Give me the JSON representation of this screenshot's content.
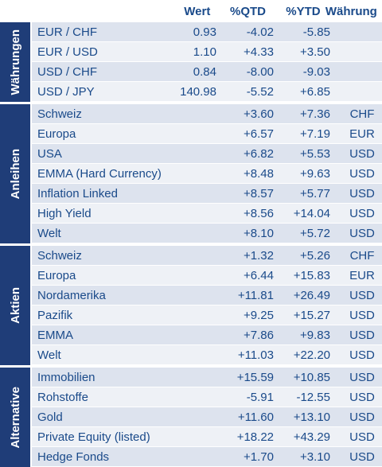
{
  "headers": {
    "wert": "Wert",
    "qtd": "%QTD",
    "ytd": "%YTD",
    "waehrung": "Währung"
  },
  "groups": [
    {
      "label": "Währungen",
      "rows": [
        {
          "name": "EUR / CHF",
          "wert": "0.93",
          "qtd": "-4.02",
          "ytd": "-5.85",
          "waehrung": ""
        },
        {
          "name": "EUR / USD",
          "wert": "1.10",
          "qtd": "+4.33",
          "ytd": "+3.50",
          "waehrung": ""
        },
        {
          "name": "USD / CHF",
          "wert": "0.84",
          "qtd": "-8.00",
          "ytd": "-9.03",
          "waehrung": ""
        },
        {
          "name": "USD / JPY",
          "wert": "140.98",
          "qtd": "-5.52",
          "ytd": "+6.85",
          "waehrung": ""
        }
      ]
    },
    {
      "label": "Anleihen",
      "rows": [
        {
          "name": "Schweiz",
          "wert": "",
          "qtd": "+3.60",
          "ytd": "+7.36",
          "waehrung": "CHF"
        },
        {
          "name": "Europa",
          "wert": "",
          "qtd": "+6.57",
          "ytd": "+7.19",
          "waehrung": "EUR"
        },
        {
          "name": "USA",
          "wert": "",
          "qtd": "+6.82",
          "ytd": "+5.53",
          "waehrung": "USD"
        },
        {
          "name": "EMMA (Hard Currency)",
          "wert": "",
          "qtd": "+8.48",
          "ytd": "+9.63",
          "waehrung": "USD"
        },
        {
          "name": "Inflation Linked",
          "wert": "",
          "qtd": "+8.57",
          "ytd": "+5.77",
          "waehrung": "USD"
        },
        {
          "name": "High Yield",
          "wert": "",
          "qtd": "+8.56",
          "ytd": "+14.04",
          "waehrung": "USD"
        },
        {
          "name": "Welt",
          "wert": "",
          "qtd": "+8.10",
          "ytd": "+5.72",
          "waehrung": "USD"
        }
      ]
    },
    {
      "label": "Aktien",
      "rows": [
        {
          "name": "Schweiz",
          "wert": "",
          "qtd": "+1.32",
          "ytd": "+5.26",
          "waehrung": "CHF"
        },
        {
          "name": "Europa",
          "wert": "",
          "qtd": "+6.44",
          "ytd": "+15.83",
          "waehrung": "EUR"
        },
        {
          "name": "Nordamerika",
          "wert": "",
          "qtd": "+11.81",
          "ytd": "+26.49",
          "waehrung": "USD"
        },
        {
          "name": "Pazifik",
          "wert": "",
          "qtd": "+9.25",
          "ytd": "+15.27",
          "waehrung": "USD"
        },
        {
          "name": "EMMA",
          "wert": "",
          "qtd": "+7.86",
          "ytd": "+9.83",
          "waehrung": "USD"
        },
        {
          "name": "Welt",
          "wert": "",
          "qtd": "+11.03",
          "ytd": "+22.20",
          "waehrung": "USD"
        }
      ]
    },
    {
      "label": "Alternative",
      "rows": [
        {
          "name": "Immobilien",
          "wert": "",
          "qtd": "+15.59",
          "ytd": "+10.85",
          "waehrung": "USD"
        },
        {
          "name": "Rohstoffe",
          "wert": "",
          "qtd": "-5.91",
          "ytd": "-12.55",
          "waehrung": "USD"
        },
        {
          "name": "Gold",
          "wert": "",
          "qtd": "+11.60",
          "ytd": "+13.10",
          "waehrung": "USD"
        },
        {
          "name": "Private Equity (listed)",
          "wert": "",
          "qtd": "+18.22",
          "ytd": "+43.29",
          "waehrung": "USD"
        },
        {
          "name": "Hedge Fonds",
          "wert": "",
          "qtd": "+1.70",
          "ytd": "+3.10",
          "waehrung": "USD"
        }
      ]
    }
  ]
}
